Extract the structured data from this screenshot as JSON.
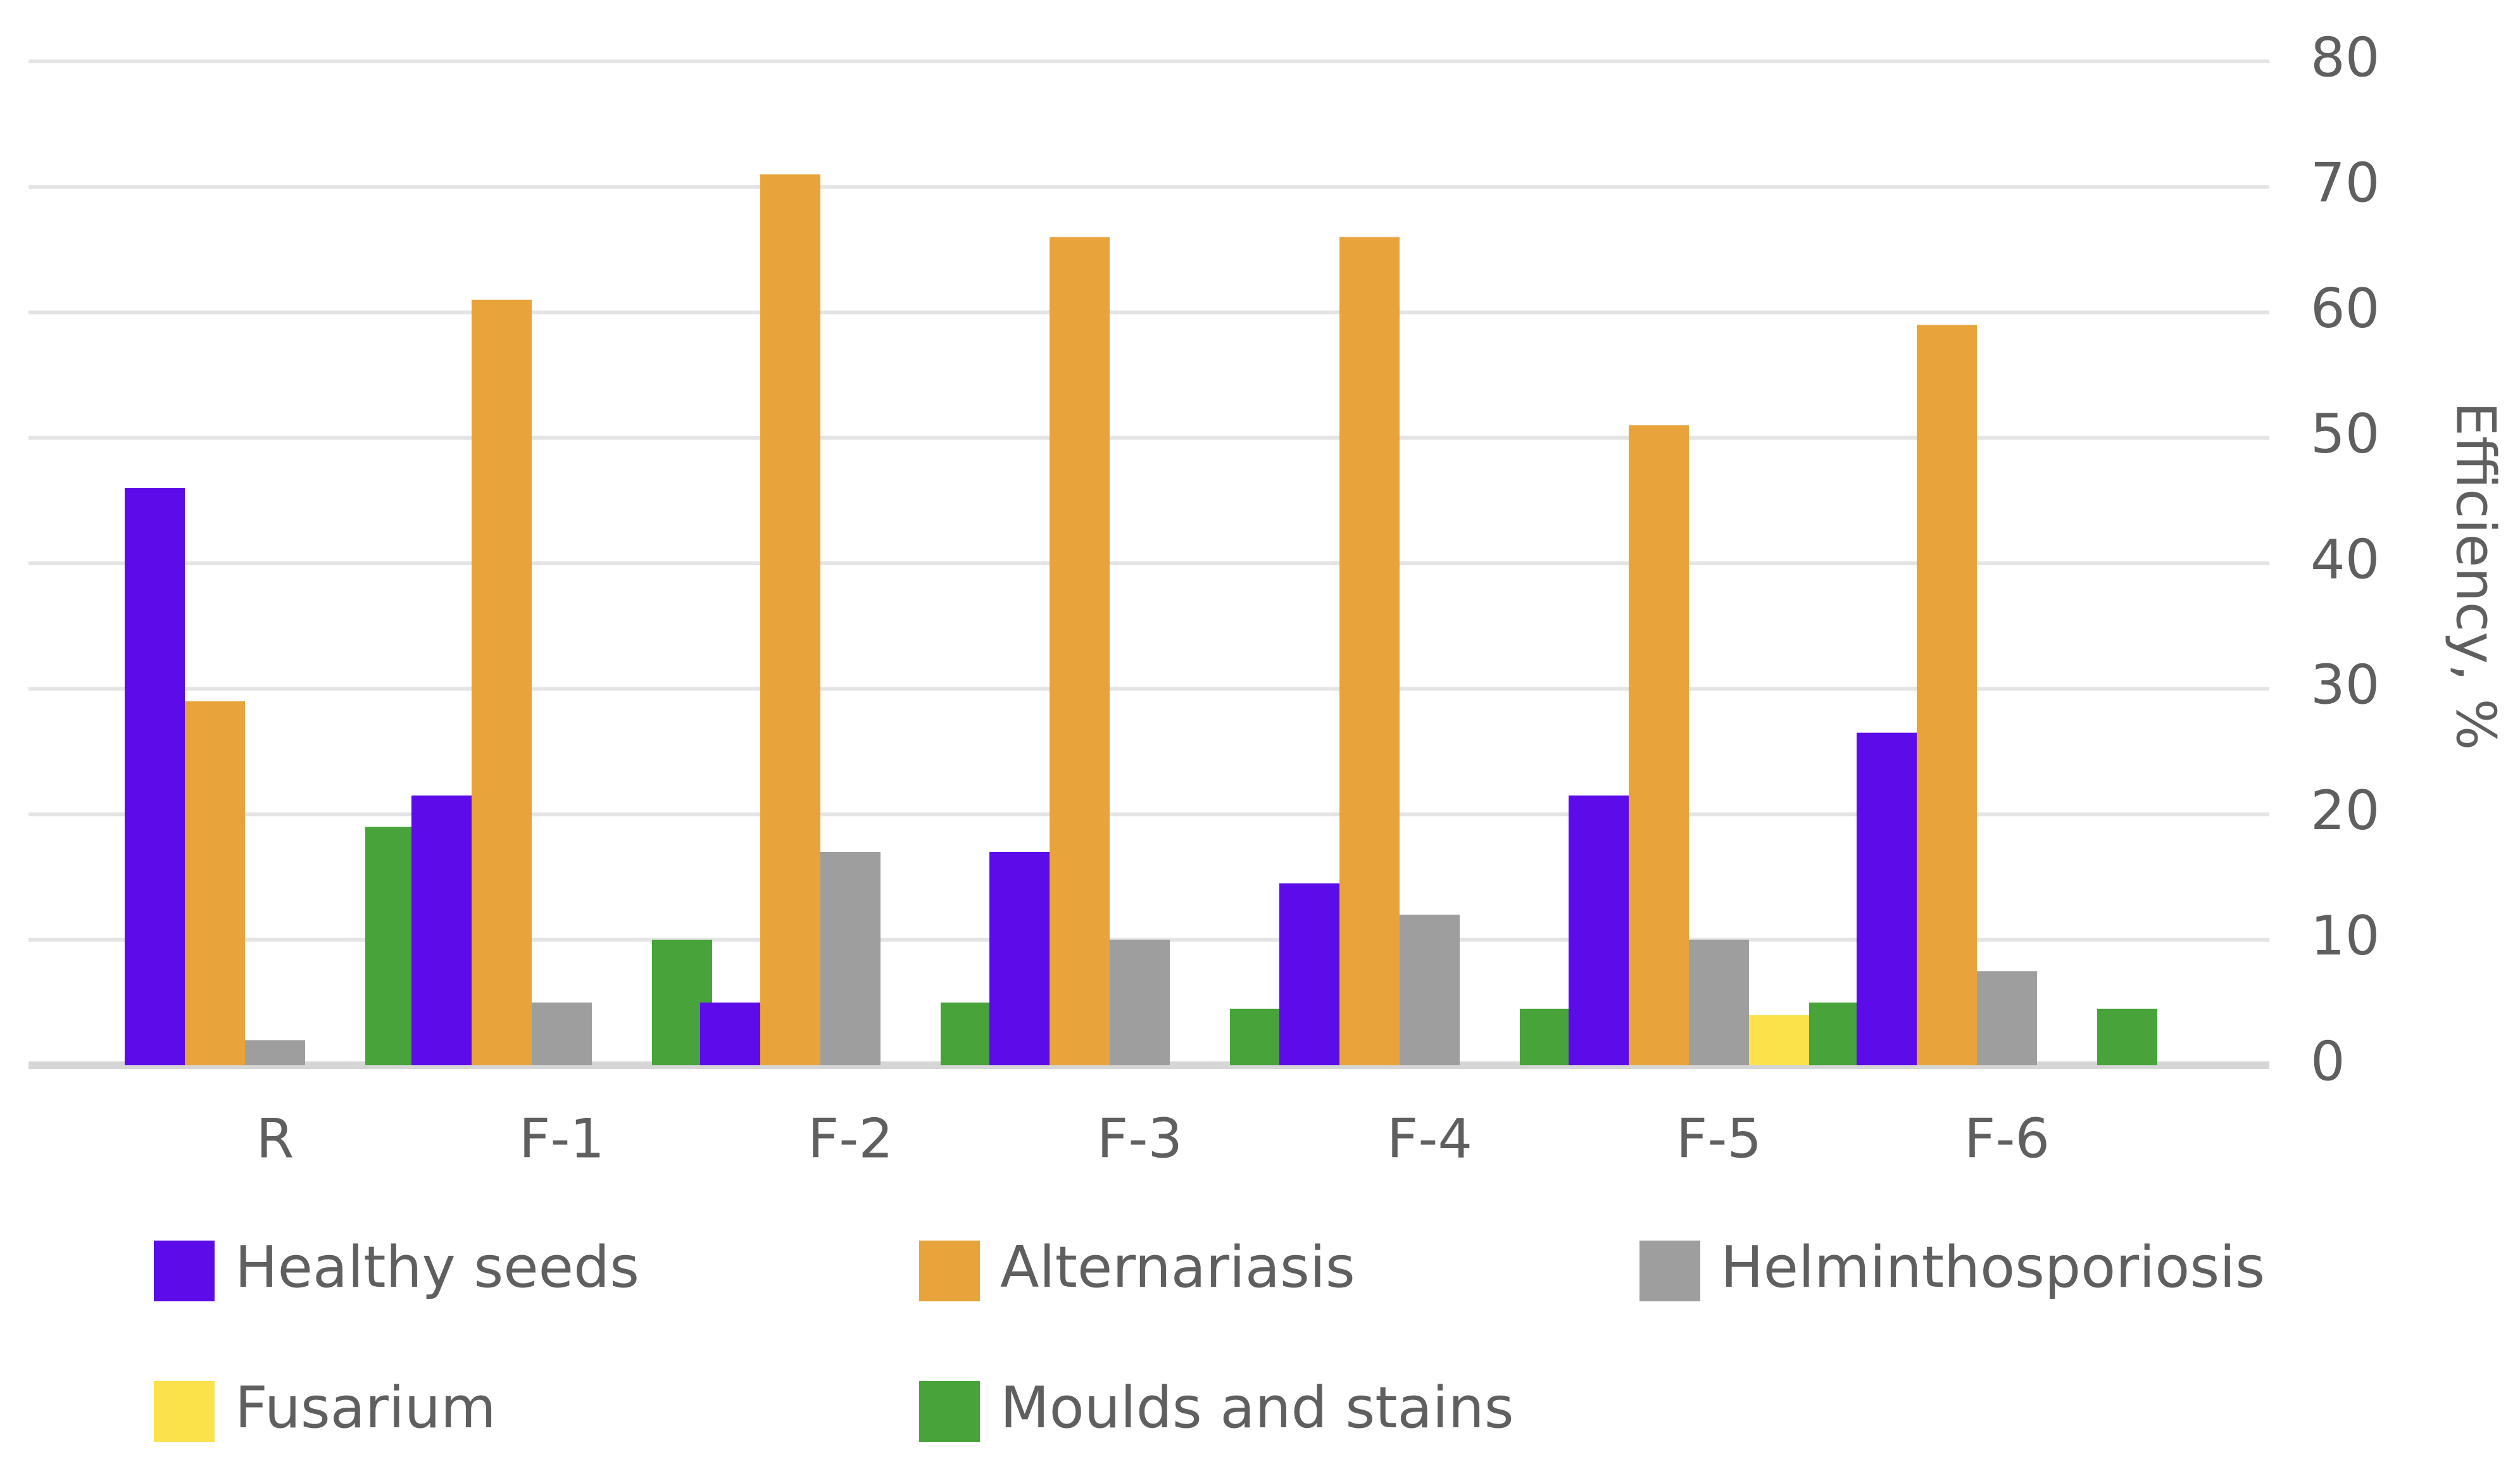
{
  "chart_data": {
    "type": "bar",
    "title": "",
    "xlabel": "",
    "ylabel": "Efficiency, %",
    "ylim": [
      0,
      80
    ],
    "yticks": [
      0,
      10,
      20,
      30,
      40,
      50,
      60,
      70,
      80
    ],
    "y_axis_side": "right",
    "grid": true,
    "legend_position": "bottom",
    "categories": [
      "R",
      "F-1",
      "F-2",
      "F-3",
      "F-4",
      "F-5",
      "F-6"
    ],
    "series": [
      {
        "name": "Healthy seeds",
        "color": "#5b0ce8",
        "values": [
          46,
          21.5,
          5,
          17,
          14.5,
          21.5,
          26.5
        ]
      },
      {
        "name": "Alternariasis",
        "color": "#e8a43a",
        "values": [
          29,
          61,
          71,
          66,
          66,
          51,
          59
        ]
      },
      {
        "name": "Helminthosporiosis",
        "color": "#9e9e9e",
        "values": [
          2,
          5,
          17,
          10,
          12,
          10,
          7.5
        ]
      },
      {
        "name": "Fusarium",
        "color": "#fbe24b",
        "values": [
          0,
          0,
          0,
          0,
          0,
          4,
          0
        ]
      },
      {
        "name": "Moulds and stains",
        "color": "#47a33a",
        "values": [
          19,
          10,
          5,
          4.5,
          4.5,
          5,
          4.5
        ]
      }
    ]
  }
}
